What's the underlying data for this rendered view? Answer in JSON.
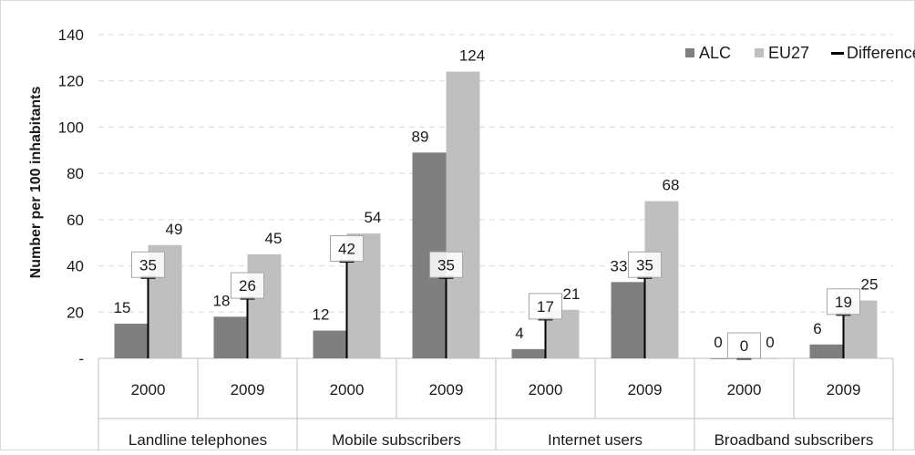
{
  "chart_data": {
    "type": "bar",
    "title": "",
    "ylabel": "Number per 100 inhabitants",
    "ylim": [
      0,
      140
    ],
    "yticks": [
      {
        "value": 0,
        "label": "-"
      },
      {
        "value": 20,
        "label": "20"
      },
      {
        "value": 40,
        "label": "40"
      },
      {
        "value": 60,
        "label": "60"
      },
      {
        "value": 80,
        "label": "80"
      },
      {
        "value": 100,
        "label": "100"
      },
      {
        "value": 120,
        "label": "120"
      },
      {
        "value": 140,
        "label": "140"
      }
    ],
    "grid": true,
    "legend_position": "top-right",
    "categories": [
      "2000",
      "2009",
      "2000",
      "2009",
      "2000",
      "2009",
      "2000",
      "2009"
    ],
    "groups": [
      {
        "label": "Landline telephones",
        "span": 2
      },
      {
        "label": "Mobile subscribers",
        "span": 2
      },
      {
        "label": "Internet users",
        "span": 2
      },
      {
        "label": "Broadband subscribers",
        "span": 2
      }
    ],
    "series": [
      {
        "name": "ALC",
        "color": "#7f7f7f",
        "values": [
          15,
          18,
          12,
          89,
          4,
          33,
          0,
          6
        ],
        "labels": [
          "15",
          "18",
          "12",
          "89",
          "4",
          "33",
          "0",
          "6"
        ]
      },
      {
        "name": "EU27",
        "color": "#bfbfbf",
        "values": [
          49,
          45,
          54,
          124,
          21,
          68,
          0,
          25
        ],
        "labels": [
          "49",
          "45",
          "54",
          "124",
          "21",
          "68",
          "0",
          "25"
        ]
      },
      {
        "name": "Difference",
        "color": "#000000",
        "values": [
          35,
          26,
          42,
          35,
          17,
          35,
          0,
          19
        ],
        "labels": [
          "35",
          "26",
          "42",
          "35",
          "17",
          "35",
          "0",
          "19"
        ]
      }
    ]
  }
}
